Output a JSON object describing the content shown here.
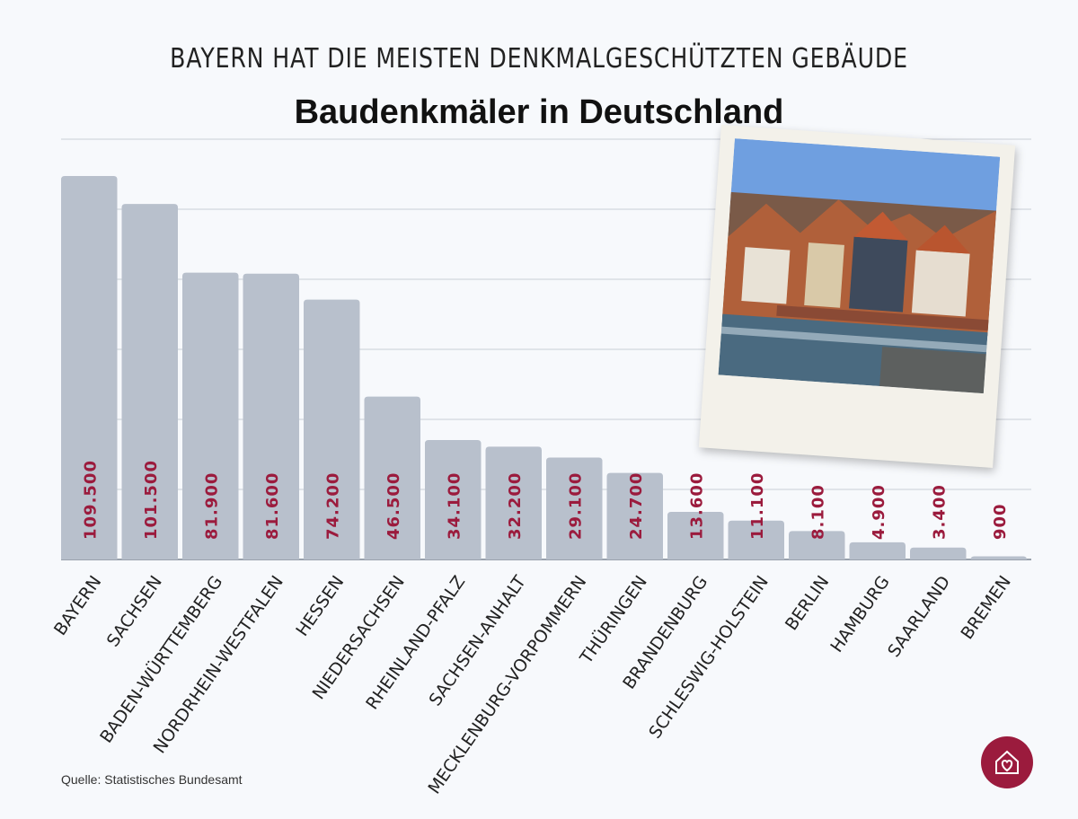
{
  "header": {
    "subtitle": "BAYERN HAT DIE MEISTEN DENKMALGESCHÜTZTEN GEBÄUDE",
    "title": "Baudenkmäler in Deutschland"
  },
  "footer": {
    "source": "Quelle: Statistisches Bundesamt"
  },
  "colors": {
    "bar": "#b8c0cc",
    "value_label": "#9b1b3d",
    "accent": "#9b1b3d",
    "grid": "#c9ced6"
  },
  "logo": {
    "icon": "house-heart-icon"
  },
  "photo": {
    "description_icon": "town-river-photo"
  },
  "chart_data": {
    "type": "bar",
    "title": "Baudenkmäler in Deutschland",
    "categories": [
      "BAYERN",
      "SACHSEN",
      "BADEN-WÜRTTEMBERG",
      "NORDRHEIN-WESTFALEN",
      "HESSEN",
      "NIEDERSACHSEN",
      "RHEINLAND-PFALZ",
      "SACHSEN-ANHALT",
      "MECKLENBURG-VORPOMMERN",
      "THÜRINGEN",
      "BRANDENBURG",
      "SCHLESWIG-HOLSTEIN",
      "BERLIN",
      "HAMBURG",
      "SAARLAND",
      "BREMEN"
    ],
    "values": [
      109500,
      101500,
      81900,
      81600,
      74200,
      46500,
      34100,
      32200,
      29100,
      24700,
      13600,
      11100,
      8100,
      4900,
      3400,
      900
    ],
    "value_labels": [
      "109.500",
      "101.500",
      "81.900",
      "81.600",
      "74.200",
      "46.500",
      "34.100",
      "32.200",
      "29.100",
      "24.700",
      "13.600",
      "11.100",
      "8.100",
      "4.900",
      "3.400",
      "900"
    ],
    "ylim": [
      0,
      120000
    ],
    "grid": true,
    "xlabel": "",
    "ylabel": ""
  }
}
